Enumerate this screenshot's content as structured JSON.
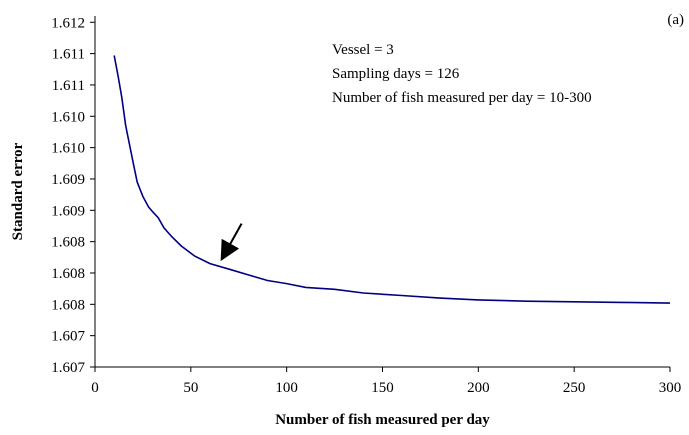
{
  "chart_data": {
    "type": "line",
    "title": "",
    "xlabel": "Number of fish measured per day",
    "ylabel": "Standard error",
    "xlim": [
      0,
      300
    ],
    "ylim": [
      1.6065,
      1.6121
    ],
    "x_ticks": [
      0,
      50,
      100,
      150,
      200,
      250,
      300
    ],
    "x_tick_labels": [
      "0",
      "50",
      "100",
      "150",
      "200",
      "250",
      "300"
    ],
    "y_ticks": [
      1.6065,
      1.607,
      1.6075,
      1.608,
      1.6085,
      1.609,
      1.6095,
      1.61,
      1.6105,
      1.611,
      1.6115,
      1.612
    ],
    "y_tick_labels": [
      "1.607",
      "1.607",
      "1.608",
      "1.608",
      "1.608",
      "1.609",
      "1.609",
      "1.610",
      "1.610",
      "1.611",
      "1.611",
      "1.612"
    ],
    "grid": false,
    "series": [
      {
        "color": "#000080",
        "x": [
          10,
          12,
          14,
          16,
          18,
          20,
          22,
          25,
          28,
          30,
          33,
          36,
          40,
          45,
          52,
          60,
          70,
          80,
          90,
          100,
          110,
          125,
          140,
          160,
          180,
          200,
          225,
          250,
          275,
          300
        ],
        "y": [
          1.61147,
          1.61115,
          1.6108,
          1.61035,
          1.61005,
          1.60975,
          1.60945,
          1.60922,
          1.60905,
          1.60898,
          1.60888,
          1.60872,
          1.60858,
          1.60843,
          1.60827,
          1.60815,
          1.60806,
          1.60797,
          1.60788,
          1.60783,
          1.60777,
          1.60774,
          1.60768,
          1.60764,
          1.6076,
          1.60757,
          1.60755,
          1.60754,
          1.60753,
          1.60752
        ]
      }
    ],
    "annotations": {
      "panel_label": "(a)",
      "lines": [
        "Vessel = 3",
        "Sampling days = 126",
        "Number of fish measured per day  = 10-300"
      ],
      "arrow_target": {
        "x": 65,
        "y": 1.60815
      }
    }
  }
}
